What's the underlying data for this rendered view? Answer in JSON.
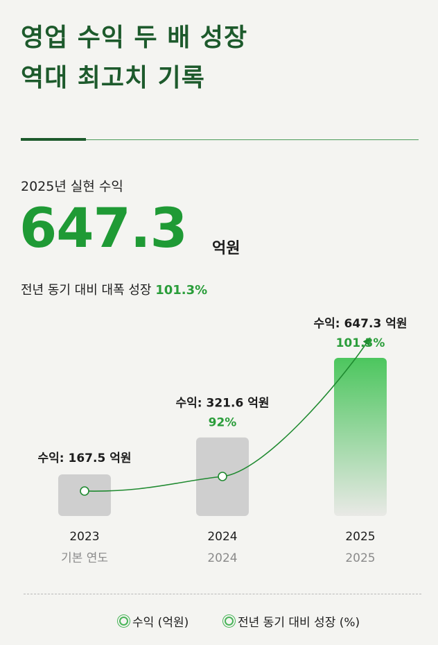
{
  "title": {
    "line1": "영업 수익 두 배 성장",
    "line2": "역대 최고치 기록"
  },
  "kpi": {
    "label": "2025년 실현 수익",
    "value": "647.3",
    "unit": "억원",
    "sub_text": "전년 동기 대비 대폭 성장",
    "sub_pct": "101.3%"
  },
  "colors": {
    "title": "#1d5a2c",
    "accent": "#1f9a35",
    "bar_gray": "#cfcfcf",
    "bar_green": "#4cc65e"
  },
  "chart_data": {
    "type": "bar",
    "categories": [
      "2023",
      "2024",
      "2025"
    ],
    "category_sublabels": [
      "기본 연도",
      "2024",
      "2025"
    ],
    "series": [
      {
        "name": "수익 (억원)",
        "values": [
          167.5,
          321.6,
          647.3
        ],
        "labels": [
          "수익: 167.5 억원",
          "수익: 321.6 억원",
          "수익: 647.3 억원"
        ]
      },
      {
        "name": "전년 동기 대비 성장 (%)",
        "values": [
          null,
          92,
          101.3
        ],
        "labels": [
          "",
          "92%",
          "101.3%"
        ]
      }
    ],
    "legend": [
      "수익 (억원)",
      "전년 동기 대비 성장 (%)"
    ],
    "legend_position": "bottom",
    "grid": false
  }
}
